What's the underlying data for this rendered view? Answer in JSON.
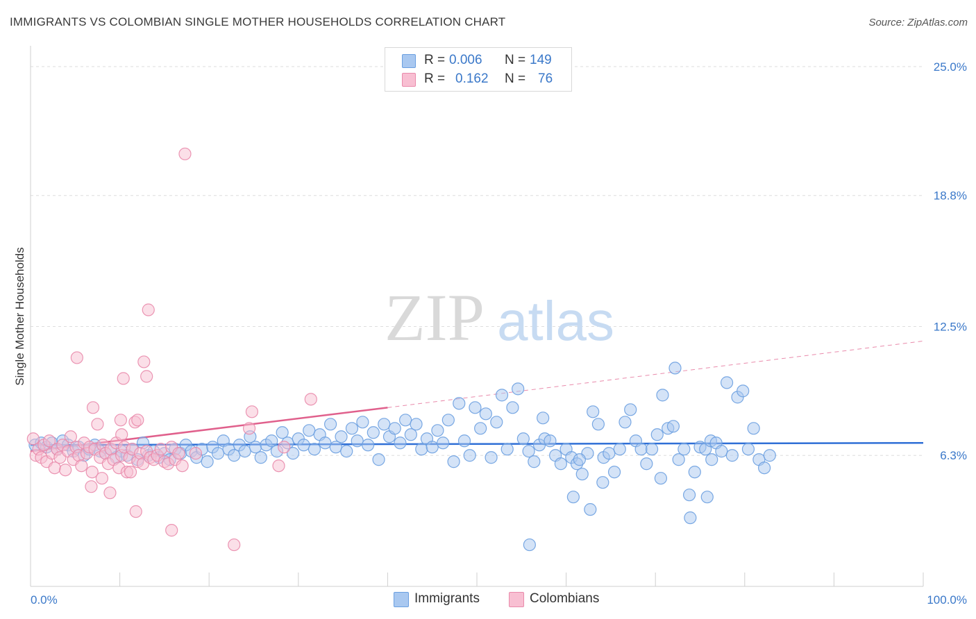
{
  "title": "IMMIGRANTS VS COLOMBIAN SINGLE MOTHER HOUSEHOLDS CORRELATION CHART",
  "source": "Source: ZipAtlas.com",
  "watermark": {
    "zip": "ZIP",
    "atlas": "atlas"
  },
  "legend": {
    "rows": [
      {
        "r_label": "R =",
        "r_value": "0.006",
        "n_label": "N =",
        "n_value": "149",
        "color": "#a9c8f0",
        "border": "#6a9fe0"
      },
      {
        "r_label": "R =",
        "r_value": "0.162",
        "n_label": "N =",
        "n_value": "76",
        "color": "#f8bfd2",
        "border": "#e98aab"
      }
    ]
  },
  "bottom_legend": [
    {
      "label": "Immigrants",
      "color": "#a9c8f0",
      "border": "#6a9fe0"
    },
    {
      "label": "Colombians",
      "color": "#f8bfd2",
      "border": "#e98aab"
    }
  ],
  "chart_data": {
    "type": "scatter",
    "xlabel": "",
    "ylabel": "Single Mother Households",
    "xlim": [
      0,
      100
    ],
    "ylim": [
      0,
      25.8
    ],
    "x_tick_labels": [
      {
        "value": 0,
        "label": "0.0%"
      },
      {
        "value": 100,
        "label": "100.0%"
      }
    ],
    "y_tick_labels": [
      {
        "value": 6.3,
        "label": "6.3%"
      },
      {
        "value": 12.5,
        "label": "12.5%"
      },
      {
        "value": 18.8,
        "label": "18.8%"
      },
      {
        "value": 25.0,
        "label": "25.0%"
      }
    ],
    "grid": "horizontal dashed",
    "series": [
      {
        "name": "Immigrants",
        "color": "#6a9fe0",
        "fill": "#a9c8f0",
        "trend": {
          "x": [
            0,
            100
          ],
          "y": [
            6.8,
            6.9
          ],
          "style": "solid"
        },
        "points": [
          [
            0.5,
            6.8
          ],
          [
            1.2,
            6.9
          ],
          [
            1.8,
            6.7
          ],
          [
            2.4,
            6.9
          ],
          [
            3,
            6.6
          ],
          [
            3.6,
            7.0
          ],
          [
            4.2,
            6.8
          ],
          [
            4.8,
            6.5
          ],
          [
            5.4,
            6.7
          ],
          [
            6,
            6.3
          ],
          [
            6.6,
            6.6
          ],
          [
            7.2,
            6.8
          ],
          [
            7.8,
            6.5
          ],
          [
            8.4,
            6.4
          ],
          [
            9,
            6.6
          ],
          [
            9.6,
            6.2
          ],
          [
            10.2,
            6.5
          ],
          [
            10.8,
            6.3
          ],
          [
            11.4,
            6.6
          ],
          [
            12,
            6.1
          ],
          [
            12.6,
            6.9
          ],
          [
            13.2,
            6.3
          ],
          [
            13.8,
            6.5
          ],
          [
            14.4,
            6.2
          ],
          [
            15,
            6.4
          ],
          [
            15.6,
            6.1
          ],
          [
            16.2,
            6.6
          ],
          [
            16.8,
            6.4
          ],
          [
            17.4,
            6.8
          ],
          [
            18,
            6.5
          ],
          [
            18.6,
            6.2
          ],
          [
            19.2,
            6.6
          ],
          [
            19.8,
            6.0
          ],
          [
            20.4,
            6.7
          ],
          [
            21,
            6.4
          ],
          [
            21.6,
            7.0
          ],
          [
            22.2,
            6.6
          ],
          [
            22.8,
            6.3
          ],
          [
            23.4,
            6.8
          ],
          [
            24,
            6.5
          ],
          [
            24.6,
            7.2
          ],
          [
            25.2,
            6.7
          ],
          [
            25.8,
            6.2
          ],
          [
            26.4,
            6.8
          ],
          [
            27,
            7.0
          ],
          [
            27.6,
            6.5
          ],
          [
            28.2,
            7.4
          ],
          [
            28.8,
            6.9
          ],
          [
            29.4,
            6.4
          ],
          [
            30,
            7.1
          ],
          [
            30.6,
            6.8
          ],
          [
            31.2,
            7.5
          ],
          [
            31.8,
            6.6
          ],
          [
            32.4,
            7.3
          ],
          [
            33,
            6.9
          ],
          [
            33.6,
            7.8
          ],
          [
            34.2,
            6.7
          ],
          [
            34.8,
            7.2
          ],
          [
            35.4,
            6.5
          ],
          [
            36,
            7.6
          ],
          [
            36.6,
            7.0
          ],
          [
            37.2,
            7.9
          ],
          [
            37.8,
            6.8
          ],
          [
            38.4,
            7.4
          ],
          [
            39,
            6.1
          ],
          [
            39.6,
            7.8
          ],
          [
            40.2,
            7.2
          ],
          [
            40.8,
            7.6
          ],
          [
            41.4,
            6.9
          ],
          [
            42,
            8.0
          ],
          [
            42.6,
            7.3
          ],
          [
            43.2,
            7.8
          ],
          [
            43.8,
            6.6
          ],
          [
            44.4,
            7.1
          ],
          [
            45,
            6.7
          ],
          [
            45.6,
            7.5
          ],
          [
            46.2,
            6.9
          ],
          [
            46.8,
            8.0
          ],
          [
            47.4,
            6.0
          ],
          [
            48,
            8.8
          ],
          [
            48.6,
            7.0
          ],
          [
            49.2,
            6.3
          ],
          [
            49.8,
            8.6
          ],
          [
            50.4,
            7.6
          ],
          [
            51,
            8.3
          ],
          [
            51.6,
            6.2
          ],
          [
            52.2,
            7.9
          ],
          [
            52.8,
            9.2
          ],
          [
            53.4,
            6.6
          ],
          [
            54,
            8.6
          ],
          [
            54.6,
            9.5
          ],
          [
            55.2,
            7.1
          ],
          [
            55.8,
            6.5
          ],
          [
            56.4,
            6.0
          ],
          [
            57,
            6.8
          ],
          [
            57.6,
            7.1
          ],
          [
            58.2,
            7.0
          ],
          [
            58.8,
            6.3
          ],
          [
            59.4,
            5.9
          ],
          [
            60,
            6.6
          ],
          [
            60.6,
            6.2
          ],
          [
            61.2,
            5.9
          ],
          [
            61.8,
            5.4
          ],
          [
            62.4,
            6.4
          ],
          [
            63,
            8.4
          ],
          [
            63.6,
            7.8
          ],
          [
            64.2,
            6.2
          ],
          [
            64.8,
            6.4
          ],
          [
            65.4,
            5.5
          ],
          [
            66,
            6.6
          ],
          [
            66.6,
            7.9
          ],
          [
            67.2,
            8.5
          ],
          [
            67.8,
            7.0
          ],
          [
            68.4,
            6.6
          ],
          [
            69,
            5.9
          ],
          [
            69.6,
            6.6
          ],
          [
            70.2,
            7.3
          ],
          [
            70.8,
            9.2
          ],
          [
            71.4,
            7.6
          ],
          [
            72,
            7.7
          ],
          [
            72.6,
            6.1
          ],
          [
            73.2,
            6.6
          ],
          [
            73.8,
            4.4
          ],
          [
            74.4,
            5.5
          ],
          [
            75,
            6.7
          ],
          [
            75.6,
            6.6
          ],
          [
            76.2,
            7.0
          ],
          [
            76.8,
            6.9
          ],
          [
            77.4,
            6.5
          ],
          [
            78,
            9.8
          ],
          [
            78.6,
            6.3
          ],
          [
            79.2,
            9.1
          ],
          [
            79.8,
            9.4
          ],
          [
            80.4,
            6.6
          ],
          [
            81,
            7.6
          ],
          [
            81.6,
            6.1
          ],
          [
            82.2,
            5.7
          ],
          [
            82.8,
            6.3
          ],
          [
            72.2,
            10.5
          ],
          [
            75.8,
            4.3
          ],
          [
            60.8,
            4.3
          ],
          [
            62.7,
            3.7
          ],
          [
            61.5,
            6.1
          ],
          [
            76.3,
            6.1
          ],
          [
            70.6,
            5.2
          ],
          [
            55.9,
            2.0
          ],
          [
            73.9,
            3.3
          ],
          [
            64.1,
            5.0
          ],
          [
            57.4,
            8.1
          ]
        ]
      },
      {
        "name": "Colombians",
        "color": "#e98aab",
        "fill": "#f8bfd2",
        "trend": {
          "x": [
            0,
            40
          ],
          "y": [
            6.5,
            8.6
          ],
          "style": "solid",
          "extension": {
            "x": [
              40,
              100
            ],
            "y": [
              8.6,
              11.8
            ],
            "style": "dashed"
          }
        },
        "points": [
          [
            0.3,
            7.1
          ],
          [
            0.6,
            6.3
          ],
          [
            0.9,
            6.6
          ],
          [
            1.2,
            6.2
          ],
          [
            1.5,
            6.8
          ],
          [
            1.8,
            6.0
          ],
          [
            2.1,
            7.0
          ],
          [
            2.4,
            6.4
          ],
          [
            2.7,
            5.7
          ],
          [
            3.0,
            6.6
          ],
          [
            3.3,
            6.2
          ],
          [
            3.6,
            6.8
          ],
          [
            3.9,
            5.6
          ],
          [
            4.2,
            6.5
          ],
          [
            4.5,
            7.2
          ],
          [
            4.8,
            6.1
          ],
          [
            5.1,
            6.7
          ],
          [
            5.4,
            6.3
          ],
          [
            5.7,
            5.8
          ],
          [
            6.0,
            6.9
          ],
          [
            6.3,
            6.4
          ],
          [
            6.6,
            6.7
          ],
          [
            6.9,
            5.5
          ],
          [
            7.2,
            6.6
          ],
          [
            7.5,
            7.8
          ],
          [
            7.8,
            6.2
          ],
          [
            8.1,
            6.8
          ],
          [
            8.4,
            6.4
          ],
          [
            8.7,
            5.9
          ],
          [
            9.0,
            6.6
          ],
          [
            9.3,
            6.1
          ],
          [
            9.6,
            6.9
          ],
          [
            9.9,
            5.7
          ],
          [
            10.2,
            6.3
          ],
          [
            10.5,
            6.7
          ],
          [
            10.8,
            5.5
          ],
          [
            11.1,
            6.2
          ],
          [
            11.4,
            6.6
          ],
          [
            11.7,
            7.9
          ],
          [
            12.0,
            6.0
          ],
          [
            12.3,
            6.4
          ],
          [
            12.6,
            5.9
          ],
          [
            13.0,
            6.5
          ],
          [
            13.4,
            6.2
          ],
          [
            13.8,
            6.1
          ],
          [
            14.2,
            6.3
          ],
          [
            14.6,
            6.6
          ],
          [
            15.0,
            6.0
          ],
          [
            15.4,
            5.9
          ],
          [
            15.8,
            6.7
          ],
          [
            16.2,
            6.1
          ],
          [
            16.6,
            6.4
          ],
          [
            17.0,
            5.8
          ],
          [
            5.2,
            11.0
          ],
          [
            10.4,
            10.0
          ],
          [
            12.7,
            10.8
          ],
          [
            13.0,
            10.1
          ],
          [
            13.2,
            13.3
          ],
          [
            17.3,
            20.8
          ],
          [
            7.0,
            8.6
          ],
          [
            12.0,
            8.0
          ],
          [
            10.1,
            8.0
          ],
          [
            18.5,
            6.4
          ],
          [
            24.8,
            8.4
          ],
          [
            31.4,
            9.0
          ],
          [
            28.4,
            6.7
          ],
          [
            24.5,
            7.6
          ],
          [
            8.0,
            5.2
          ],
          [
            6.8,
            4.8
          ],
          [
            8.9,
            4.5
          ],
          [
            11.2,
            5.5
          ],
          [
            11.8,
            3.6
          ],
          [
            15.8,
            2.7
          ],
          [
            22.8,
            2.0
          ],
          [
            27.8,
            5.8
          ],
          [
            10.2,
            7.3
          ]
        ]
      }
    ]
  }
}
